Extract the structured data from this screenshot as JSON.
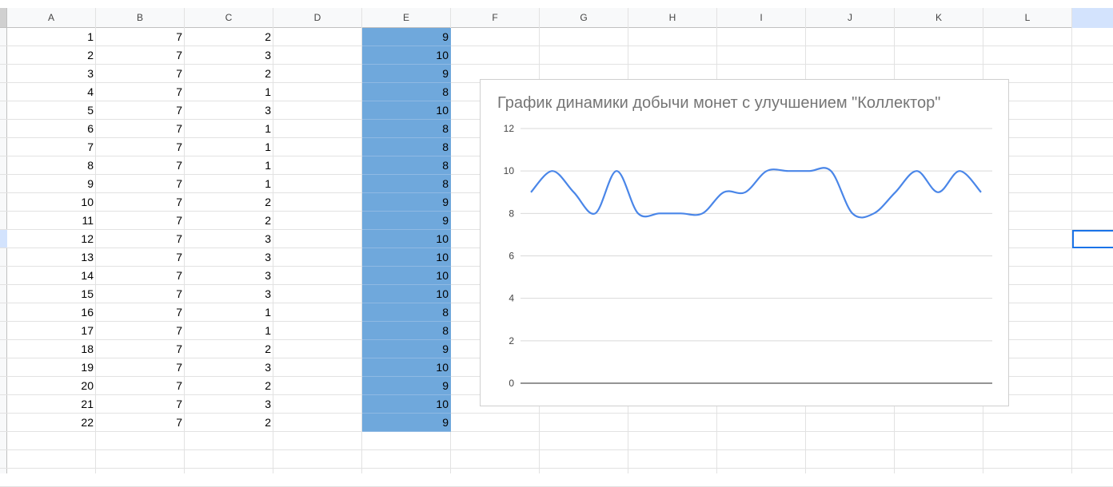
{
  "columns": [
    "A",
    "B",
    "C",
    "D",
    "E",
    "F",
    "G",
    "H",
    "I",
    "J",
    "K",
    "L"
  ],
  "rows": [
    {
      "a": "1",
      "b": "7",
      "c": "2",
      "e": "9"
    },
    {
      "a": "2",
      "b": "7",
      "c": "3",
      "e": "10"
    },
    {
      "a": "3",
      "b": "7",
      "c": "2",
      "e": "9"
    },
    {
      "a": "4",
      "b": "7",
      "c": "1",
      "e": "8"
    },
    {
      "a": "5",
      "b": "7",
      "c": "3",
      "e": "10"
    },
    {
      "a": "6",
      "b": "7",
      "c": "1",
      "e": "8"
    },
    {
      "a": "7",
      "b": "7",
      "c": "1",
      "e": "8"
    },
    {
      "a": "8",
      "b": "7",
      "c": "1",
      "e": "8"
    },
    {
      "a": "9",
      "b": "7",
      "c": "1",
      "e": "8"
    },
    {
      "a": "10",
      "b": "7",
      "c": "2",
      "e": "9"
    },
    {
      "a": "11",
      "b": "7",
      "c": "2",
      "e": "9"
    },
    {
      "a": "12",
      "b": "7",
      "c": "3",
      "e": "10"
    },
    {
      "a": "13",
      "b": "7",
      "c": "3",
      "e": "10"
    },
    {
      "a": "14",
      "b": "7",
      "c": "3",
      "e": "10"
    },
    {
      "a": "15",
      "b": "7",
      "c": "3",
      "e": "10"
    },
    {
      "a": "16",
      "b": "7",
      "c": "1",
      "e": "8"
    },
    {
      "a": "17",
      "b": "7",
      "c": "1",
      "e": "8"
    },
    {
      "a": "18",
      "b": "7",
      "c": "2",
      "e": "9"
    },
    {
      "a": "19",
      "b": "7",
      "c": "3",
      "e": "10"
    },
    {
      "a": "20",
      "b": "7",
      "c": "2",
      "e": "9"
    },
    {
      "a": "21",
      "b": "7",
      "c": "3",
      "e": "10"
    },
    {
      "a": "22",
      "b": "7",
      "c": "2",
      "e": "9"
    }
  ],
  "colors": {
    "highlight": "#6fa8dc",
    "line": "#4a86e8",
    "selection": "#1a73e8",
    "gridline": "#e2e2e2"
  },
  "chart_data": {
    "type": "line",
    "title": "График динамики добычи монет с улучшением \"Коллектор\"",
    "xlabel": "",
    "ylabel": "",
    "ylim": [
      0,
      12
    ],
    "yticks": [
      0,
      2,
      4,
      6,
      8,
      10,
      12
    ],
    "grid": true,
    "smooth": true,
    "x": [
      1,
      2,
      3,
      4,
      5,
      6,
      7,
      8,
      9,
      10,
      11,
      12,
      13,
      14,
      15,
      16,
      17,
      18,
      19,
      20,
      21,
      22
    ],
    "series": [
      {
        "values": [
          9,
          10,
          9,
          8,
          10,
          8,
          8,
          8,
          8,
          9,
          9,
          10,
          10,
          10,
          10,
          8,
          8,
          9,
          10,
          9,
          10,
          9
        ]
      }
    ]
  }
}
